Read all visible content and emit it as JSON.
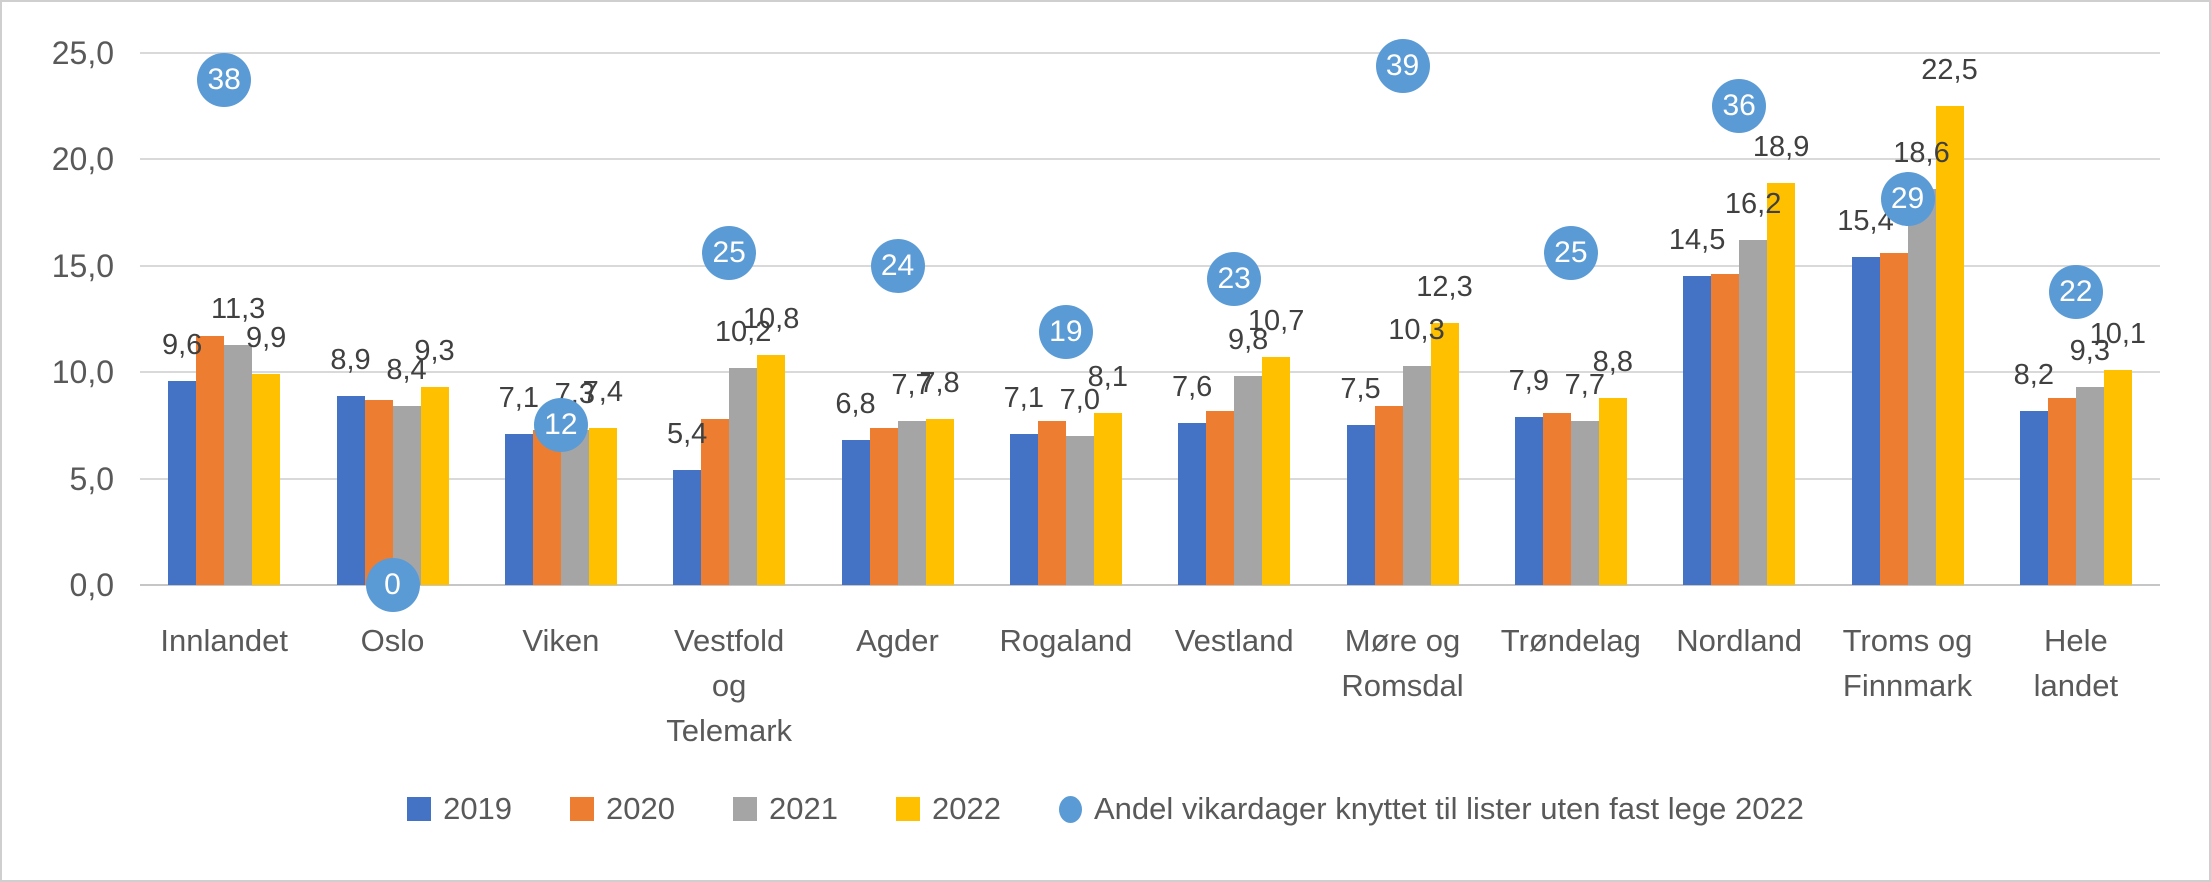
{
  "chart_data": {
    "type": "bar",
    "title": "",
    "categories": [
      "Innlandet",
      "Oslo",
      "Viken",
      "Vestfold og Telemark",
      "Agder",
      "Rogaland",
      "Vestland",
      "Møre og Romsdal",
      "Trøndelag",
      "Nordland",
      "Troms og Finnmark",
      "Hele landet"
    ],
    "category_display_lines": [
      "Innlandet",
      "Oslo",
      "Viken",
      "Vestfold\nog\nTelemark",
      "Agder",
      "Rogaland",
      "Vestland",
      "Møre og\nRomsdal",
      "Trøndelag",
      "Nordland",
      "Troms og\nFinnmark",
      "Hele\nlandet"
    ],
    "series": [
      {
        "name": "2019",
        "color": "#4472C4",
        "data_labels_visible": true,
        "values": [
          9.6,
          8.9,
          7.1,
          5.4,
          6.8,
          7.1,
          7.6,
          7.5,
          7.9,
          14.5,
          15.4,
          8.2
        ]
      },
      {
        "name": "2020",
        "color": "#ED7D31",
        "data_labels_visible": false,
        "values": [
          11.7,
          8.7,
          7.3,
          7.8,
          7.4,
          7.7,
          8.2,
          8.4,
          8.1,
          14.6,
          15.6,
          8.8
        ],
        "note": "no data labels shown in chart; values estimated from bar heights"
      },
      {
        "name": "2021",
        "color": "#A5A5A5",
        "data_labels_visible": true,
        "values": [
          11.3,
          8.4,
          7.3,
          10.2,
          7.7,
          7.0,
          9.8,
          10.3,
          7.7,
          16.2,
          18.6,
          9.3
        ]
      },
      {
        "name": "2022",
        "color": "#FFC000",
        "data_labels_visible": true,
        "values": [
          9.9,
          9.3,
          7.4,
          10.8,
          7.8,
          8.1,
          10.7,
          12.3,
          8.8,
          18.9,
          22.5,
          10.1
        ]
      }
    ],
    "marker_series": {
      "name": "Andel vikardager knyttet til lister uten fast lege 2022",
      "color": "#5B9BD5",
      "text_color": "#ffffff",
      "values": [
        38,
        0,
        12,
        25,
        24,
        19,
        23,
        39,
        25,
        36,
        29,
        22
      ],
      "axis": "secondary",
      "secondary_axis_range": [
        0,
        40
      ],
      "secondary_axis_visible": false
    },
    "ylim": [
      0,
      25
    ],
    "y_ticks": [
      0,
      5,
      10,
      15,
      20,
      25
    ],
    "y_tick_labels": [
      "0,0",
      "5,0",
      "10,0",
      "15,0",
      "20,0",
      "25,0"
    ],
    "decimal_separator": ",",
    "grid": true,
    "gridline_color": "#d9d9d9",
    "axis_text_color": "#595959",
    "data_label_color": "#404040",
    "legend_position": "bottom",
    "legend_entries": [
      "2019",
      "2020",
      "2021",
      "2022",
      "Andel vikardager knyttet til lister uten fast lege 2022"
    ]
  }
}
